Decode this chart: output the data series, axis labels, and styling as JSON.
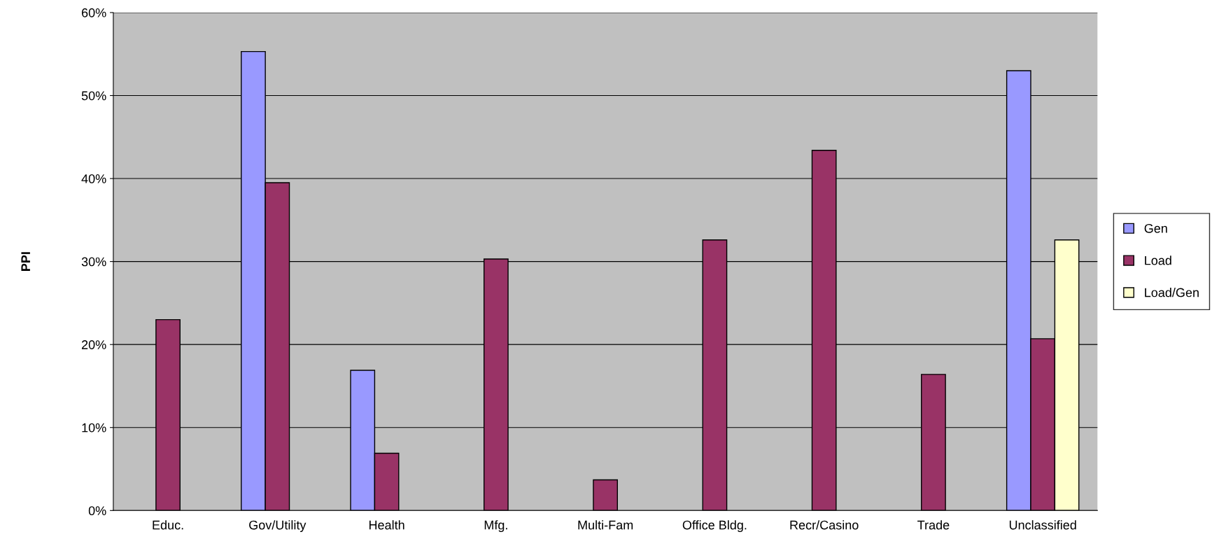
{
  "chart_data": {
    "type": "bar",
    "ylabel": "PPI",
    "categories": [
      "Educ.",
      "Gov/Utility",
      "Health",
      "Mfg.",
      "Multi-Fam",
      "Office Bldg.",
      "Recr/Casino",
      "Trade",
      "Unclassified"
    ],
    "series": [
      {
        "name": "Gen",
        "color": "#9999ff",
        "values": [
          null,
          55.3,
          16.9,
          null,
          null,
          null,
          null,
          null,
          53.0
        ]
      },
      {
        "name": "Load",
        "color": "#993366",
        "values": [
          23.0,
          39.5,
          6.9,
          30.3,
          3.7,
          32.6,
          43.4,
          16.4,
          20.7
        ]
      },
      {
        "name": "Load/Gen",
        "color": "#ffffcc",
        "values": [
          null,
          null,
          null,
          null,
          null,
          null,
          null,
          null,
          32.6
        ]
      }
    ],
    "ylim": [
      0,
      60
    ],
    "yticks": [
      {
        "value": 0,
        "label": "0%"
      },
      {
        "value": 10,
        "label": "10%"
      },
      {
        "value": 20,
        "label": "20%"
      },
      {
        "value": 30,
        "label": "30%"
      },
      {
        "value": 40,
        "label": "40%"
      },
      {
        "value": 50,
        "label": "50%"
      },
      {
        "value": 60,
        "label": "60%"
      }
    ],
    "grid": "y",
    "legend": "right"
  }
}
